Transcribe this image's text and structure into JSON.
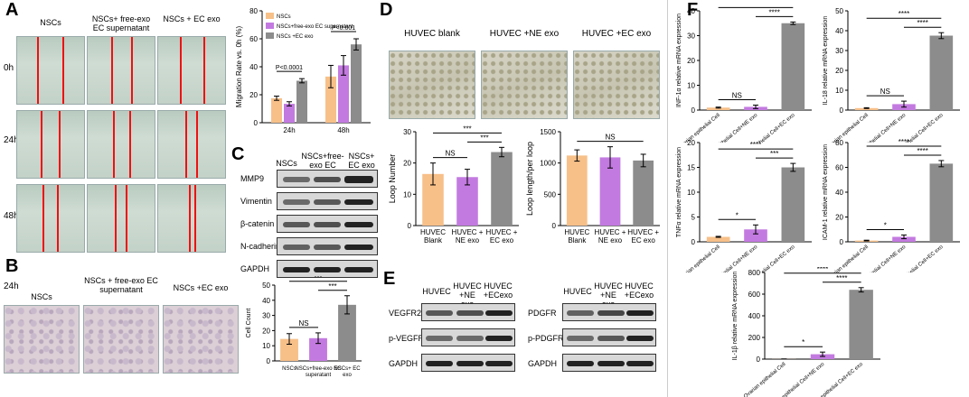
{
  "panels": {
    "A": {
      "letter": "A",
      "col_labels": [
        "NSCs",
        "NSCs+ free-exo EC supernatant",
        "NSCs + EC exo"
      ],
      "row_labels": [
        "0h",
        "24h",
        "48h"
      ]
    },
    "B": {
      "letter": "B",
      "time_label": "24h",
      "col_labels": [
        "NSCs",
        "NSCs + free-exo EC supernatant",
        "NSCs +EC exo"
      ]
    },
    "C": {
      "letter": "C",
      "lane_labels": [
        "NSCs",
        "NSCs+free-exo EC supernatant",
        "NSCs+ EC exo"
      ],
      "rows": [
        "MMP9",
        "Vimentin",
        "β-catenin",
        "N-cadherin",
        "GAPDH"
      ]
    },
    "D": {
      "letter": "D",
      "img_labels": [
        "HUVEC blank",
        "HUVEC +NE exo",
        "HUVEC +EC exo"
      ]
    },
    "E": {
      "letter": "E",
      "left_lanes": [
        "HUVEC",
        "HUVEC +NE exo",
        "HUVEC +ECexo"
      ],
      "left_rows": [
        "VEGFR2",
        "p-VEGFR2",
        "GAPDH"
      ],
      "right_lanes": [
        "HUVEC",
        "HUVEC +NE exo",
        "HUVEC +ECexo"
      ],
      "right_rows": [
        "PDGFR",
        "p-PDGFR",
        "GAPDH"
      ]
    },
    "F": {
      "letter": "F"
    }
  },
  "chart_data": [
    {
      "id": "migration",
      "type": "bar",
      "categories": [
        "24h",
        "48h"
      ],
      "series": [
        {
          "name": "NSCs",
          "values": [
            17.5,
            33
          ],
          "err": [
            1.5,
            8
          ],
          "color": "#f7c089"
        },
        {
          "name": "NSCs+free-exo EC supernatant",
          "values": [
            13.5,
            41
          ],
          "err": [
            1.5,
            7
          ],
          "color": "#c37ae0"
        },
        {
          "name": "NSCs +EC exo",
          "values": [
            30,
            56
          ],
          "err": [
            1.5,
            4
          ],
          "color": "#8c8c8c"
        }
      ],
      "ylabel": "Migration Rate vs. 0h (%)",
      "ylim": [
        0,
        80
      ],
      "yticks": [
        0,
        20,
        40,
        60,
        80
      ],
      "annotations": [
        "P<0.0001",
        "P<0.001"
      ]
    },
    {
      "id": "cellcount",
      "type": "bar",
      "categories": [
        "NSCs",
        "NSCs+free-exo EC superatant",
        "NSCs+ EC exo"
      ],
      "values": [
        14.5,
        15,
        37
      ],
      "err": [
        3.5,
        3.5,
        6
      ],
      "colors": [
        "#f7c089",
        "#c37ae0",
        "#8c8c8c"
      ],
      "ylabel": "Cell Count",
      "ylim": [
        0,
        50
      ],
      "yticks": [
        0,
        10,
        20,
        30,
        40,
        50
      ],
      "annotations": [
        "NS",
        "***",
        "***"
      ]
    },
    {
      "id": "loopnumber",
      "type": "bar",
      "categories": [
        "HUVEC Blank",
        "HUVEC + NE exo",
        "HUVEC + EC exo"
      ],
      "values": [
        16.5,
        15.5,
        23.5
      ],
      "err": [
        3.5,
        2.5,
        1.5
      ],
      "colors": [
        "#f7c089",
        "#c37ae0",
        "#8c8c8c"
      ],
      "ylabel": "Loop Number",
      "ylim": [
        0,
        30
      ],
      "yticks": [
        0,
        10,
        20,
        30
      ],
      "annotations": [
        "NS",
        "***",
        "***"
      ]
    },
    {
      "id": "looplength",
      "type": "bar",
      "categories": [
        "HUVEC Blank",
        "HUVEC + NE exo",
        "HUVEC + EC exo"
      ],
      "values": [
        1120,
        1090,
        1040
      ],
      "err": [
        90,
        170,
        100
      ],
      "colors": [
        "#f7c089",
        "#c37ae0",
        "#8c8c8c"
      ],
      "ylabel": "Loop length/per loop",
      "ylim": [
        0,
        1500
      ],
      "yticks": [
        0,
        500,
        1000,
        1500
      ],
      "annotations": [
        "NS"
      ]
    },
    {
      "id": "infa",
      "type": "bar",
      "categories": [
        "Ovarian epithelial Cell",
        "Ovarian epithelial Cell+NE exo",
        "Ovarian epithelial Cell+EC exo"
      ],
      "values": [
        1,
        1.3,
        35
      ],
      "err": [
        0.2,
        0.7,
        0.5
      ],
      "colors": [
        "#f7c089",
        "#c37ae0",
        "#8c8c8c"
      ],
      "ylabel": "INF-1α relative mRNA expression",
      "ylim": [
        0,
        40
      ],
      "yticks": [
        0,
        10,
        20,
        30,
        40
      ],
      "annotations": [
        "NS",
        "****",
        "****"
      ]
    },
    {
      "id": "il18",
      "type": "bar",
      "categories": [
        "Ovarian epithelial Cell",
        "Ovarian epithelial Cell+NE exo",
        "Ovarian epithelial Cell+EC exo"
      ],
      "values": [
        1,
        3,
        37.5
      ],
      "err": [
        0.2,
        1.5,
        1.5
      ],
      "colors": [
        "#f7c089",
        "#c37ae0",
        "#8c8c8c"
      ],
      "ylabel": "IL-18 relative mRNA expression",
      "ylim": [
        0,
        50
      ],
      "yticks": [
        0,
        10,
        20,
        30,
        40,
        50
      ],
      "annotations": [
        "NS",
        "****",
        "****"
      ]
    },
    {
      "id": "tnfa",
      "type": "bar",
      "categories": [
        "Ovarian epithelial Cell",
        "Ovarian epithelial Cell+NE exo",
        "Ovarian epithelial Cell+EC exo"
      ],
      "values": [
        1,
        2.5,
        15
      ],
      "err": [
        0.1,
        0.9,
        0.8
      ],
      "colors": [
        "#f7c089",
        "#c37ae0",
        "#8c8c8c"
      ],
      "ylabel": "TNFα relative mRNA expression",
      "ylim": [
        0,
        20
      ],
      "yticks": [
        0,
        5,
        10,
        15,
        20
      ],
      "annotations": [
        "*",
        "****",
        "***"
      ]
    },
    {
      "id": "icam1",
      "type": "bar",
      "categories": [
        "Ovarian epithelial Cell",
        "Ovarian epithelial Cell+NE exo",
        "Ovarian epithelial Cell+EC exo"
      ],
      "values": [
        1,
        4,
        63
      ],
      "err": [
        0.3,
        1.5,
        2.5
      ],
      "colors": [
        "#f7c089",
        "#c37ae0",
        "#8c8c8c"
      ],
      "ylabel": "ICAM-1 relative mRNA expression",
      "ylim": [
        0,
        80
      ],
      "yticks": [
        0,
        20,
        40,
        60,
        80
      ],
      "annotations": [
        "*",
        "****",
        "****"
      ]
    },
    {
      "id": "il1b",
      "type": "bar",
      "categories": [
        "Ovarian epithelial Cell",
        "Ovarian epithelial Cell+NE exo",
        "Ovarian epithelial Cell+EC exo"
      ],
      "values": [
        1,
        45,
        640
      ],
      "err": [
        1,
        20,
        20
      ],
      "colors": [
        "#f7c089",
        "#c37ae0",
        "#8c8c8c"
      ],
      "ylabel": "IL-1β relative mRNA expression",
      "ylim": [
        0,
        800
      ],
      "yticks": [
        0,
        200,
        400,
        600,
        800
      ],
      "annotations": [
        "*",
        "****",
        "****"
      ]
    }
  ]
}
